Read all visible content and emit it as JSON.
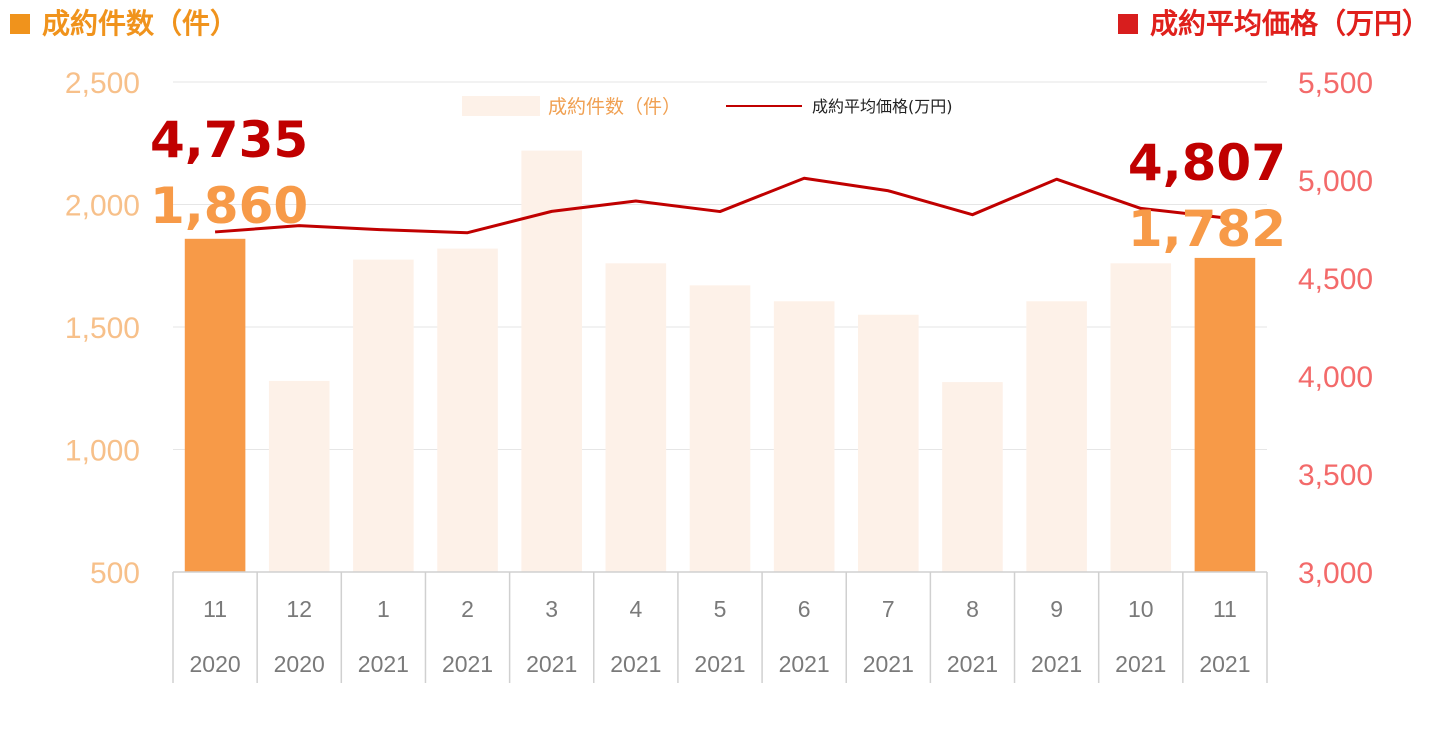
{
  "headers": {
    "left_title": "成約件数（件）",
    "right_title": "成約平均価格（万円）"
  },
  "legend": {
    "bar_label": "成約件数（件）",
    "line_label": "成約平均価格(万円)"
  },
  "colors": {
    "bar_highlight": "#f79a48",
    "bar_muted": "#fdf1e8",
    "line": "#c00000",
    "left_axis_text": "#f7c08a",
    "right_axis_text": "#f36a6a",
    "anno_price": "#c00000",
    "anno_count": "#f79a48"
  },
  "chart_data": {
    "type": "bar",
    "x_months": [
      "11",
      "12",
      "1",
      "2",
      "3",
      "4",
      "5",
      "6",
      "7",
      "8",
      "9",
      "10",
      "11"
    ],
    "x_years": [
      "2020",
      "2020",
      "2021",
      "2021",
      "2021",
      "2021",
      "2021",
      "2021",
      "2021",
      "2021",
      "2021",
      "2021",
      "2021"
    ],
    "left_axis": {
      "ylim": [
        500,
        2500
      ],
      "ticks": [
        "500",
        "1,000",
        "1,500",
        "2,000",
        "2,500"
      ]
    },
    "right_axis": {
      "ylim": [
        3000,
        5500
      ],
      "ticks": [
        "3,000",
        "3,500",
        "4,000",
        "4,500",
        "5,000",
        "5,500"
      ]
    },
    "gridlines": true,
    "legend_position": "top-center",
    "series": [
      {
        "name": "成約件数（件）",
        "type": "bar",
        "axis": "left",
        "values": [
          1860,
          1280,
          1775,
          1820,
          2220,
          1760,
          1670,
          1605,
          1550,
          1275,
          1605,
          1760,
          1782
        ],
        "highlight": [
          true,
          false,
          false,
          false,
          false,
          false,
          false,
          false,
          false,
          false,
          false,
          false,
          true
        ]
      },
      {
        "name": "成約平均価格(万円)",
        "type": "line",
        "axis": "right",
        "values": [
          4735,
          4767,
          4746,
          4731,
          4840,
          4893,
          4839,
          5009,
          4945,
          4823,
          5004,
          4855,
          4807
        ]
      }
    ],
    "annotations": [
      {
        "text": "4,735",
        "series": "price",
        "index": 0
      },
      {
        "text": "1,860",
        "series": "count",
        "index": 0
      },
      {
        "text": "4,807",
        "series": "price",
        "index": 12
      },
      {
        "text": "1,782",
        "series": "count",
        "index": 12
      }
    ]
  }
}
